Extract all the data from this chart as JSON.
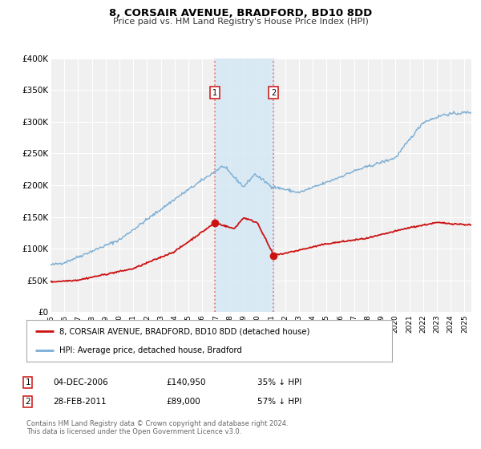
{
  "title": "8, CORSAIR AVENUE, BRADFORD, BD10 8DD",
  "subtitle": "Price paid vs. HM Land Registry's House Price Index (HPI)",
  "background_color": "#ffffff",
  "plot_bg_color": "#f0f0f0",
  "grid_color": "#ffffff",
  "hpi_color": "#7aadd4",
  "price_color": "#cc1111",
  "vline_color": "#e08080",
  "span_color": "#d6e8f5",
  "ylim": [
    0,
    400000
  ],
  "yticks": [
    0,
    50000,
    100000,
    150000,
    200000,
    250000,
    300000,
    350000,
    400000
  ],
  "ytick_labels": [
    "£0",
    "£50K",
    "£100K",
    "£150K",
    "£200K",
    "£250K",
    "£300K",
    "£350K",
    "£400K"
  ],
  "sale1_date": 2006.92,
  "sale1_price": 140950,
  "sale2_date": 2011.16,
  "sale2_price": 89000,
  "legend_line1": "8, CORSAIR AVENUE, BRADFORD, BD10 8DD (detached house)",
  "legend_line2": "HPI: Average price, detached house, Bradford",
  "table_row1": [
    "1",
    "04-DEC-2006",
    "£140,950",
    "35% ↓ HPI"
  ],
  "table_row2": [
    "2",
    "28-FEB-2011",
    "£89,000",
    "57% ↓ HPI"
  ],
  "footnote": "Contains HM Land Registry data © Crown copyright and database right 2024.\nThis data is licensed under the Open Government Licence v3.0.",
  "xmin": 1995.0,
  "xmax": 2025.5
}
